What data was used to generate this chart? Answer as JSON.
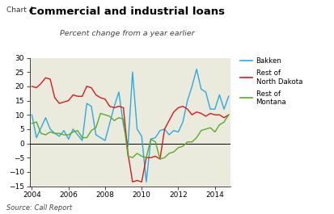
{
  "title": "Commercial and industrial loans",
  "chart_label": "Chart 4",
  "subtitle": "Percent change from a year earlier",
  "source": "Source: Call Report",
  "plot_bg_color": "#eaebdc",
  "ylim": [
    -15,
    30
  ],
  "yticks": [
    -15,
    -10,
    -5,
    0,
    5,
    10,
    15,
    20,
    25,
    30
  ],
  "xlim": [
    2003.9,
    2014.85
  ],
  "xticks": [
    2004,
    2006,
    2008,
    2010,
    2012,
    2014
  ],
  "colors": {
    "bakken": "#29abe2",
    "nd": "#d7191c",
    "mt": "#5aaa2a"
  },
  "bakken_x": [
    2004.0,
    2004.25,
    2004.5,
    2004.75,
    2005.0,
    2005.25,
    2005.5,
    2005.75,
    2006.0,
    2006.25,
    2006.5,
    2006.75,
    2007.0,
    2007.25,
    2007.5,
    2007.75,
    2008.0,
    2008.25,
    2008.5,
    2008.75,
    2009.0,
    2009.25,
    2009.5,
    2009.75,
    2010.0,
    2010.25,
    2010.5,
    2010.75,
    2011.0,
    2011.25,
    2011.5,
    2011.75,
    2012.0,
    2012.25,
    2012.5,
    2012.75,
    2013.0,
    2013.25,
    2013.5,
    2013.75,
    2014.0,
    2014.25,
    2014.5,
    2014.75
  ],
  "bakken_y": [
    10.0,
    2.0,
    5.5,
    9.0,
    5.0,
    3.5,
    2.5,
    4.5,
    1.5,
    5.0,
    3.0,
    1.0,
    14.0,
    13.0,
    3.0,
    2.0,
    1.0,
    7.0,
    13.0,
    18.0,
    6.5,
    -1.0,
    25.0,
    5.0,
    2.5,
    -13.5,
    1.5,
    2.0,
    4.5,
    5.0,
    3.0,
    4.5,
    4.0,
    7.5,
    15.0,
    20.0,
    26.0,
    19.0,
    18.0,
    12.0,
    12.0,
    17.0,
    12.0,
    16.5
  ],
  "nd_x": [
    2004.0,
    2004.25,
    2004.5,
    2004.75,
    2005.0,
    2005.25,
    2005.5,
    2005.75,
    2006.0,
    2006.25,
    2006.5,
    2006.75,
    2007.0,
    2007.25,
    2007.5,
    2007.75,
    2008.0,
    2008.25,
    2008.5,
    2008.75,
    2009.0,
    2009.25,
    2009.5,
    2009.75,
    2010.0,
    2010.25,
    2010.5,
    2010.75,
    2011.0,
    2011.25,
    2011.5,
    2011.75,
    2012.0,
    2012.25,
    2012.5,
    2012.75,
    2013.0,
    2013.25,
    2013.5,
    2013.75,
    2014.0,
    2014.25,
    2014.5,
    2014.75
  ],
  "nd_y": [
    20.0,
    19.5,
    21.0,
    23.0,
    22.5,
    16.0,
    14.0,
    14.5,
    15.0,
    17.0,
    16.5,
    16.5,
    20.0,
    19.5,
    17.0,
    16.0,
    15.5,
    13.0,
    12.5,
    13.0,
    12.5,
    -3.5,
    -13.5,
    -13.0,
    -13.5,
    -5.0,
    -5.0,
    -4.5,
    -5.5,
    5.0,
    8.0,
    11.0,
    12.5,
    13.0,
    12.0,
    10.0,
    11.0,
    10.5,
    9.5,
    10.5,
    10.0,
    10.0,
    9.0,
    10.0
  ],
  "mt_x": [
    2004.0,
    2004.25,
    2004.5,
    2004.75,
    2005.0,
    2005.25,
    2005.5,
    2005.75,
    2006.0,
    2006.25,
    2006.5,
    2006.75,
    2007.0,
    2007.25,
    2007.5,
    2007.75,
    2008.0,
    2008.25,
    2008.5,
    2008.75,
    2009.0,
    2009.25,
    2009.5,
    2009.75,
    2010.0,
    2010.25,
    2010.5,
    2010.75,
    2011.0,
    2011.25,
    2011.5,
    2011.75,
    2012.0,
    2012.25,
    2012.5,
    2012.75,
    2013.0,
    2013.25,
    2013.5,
    2013.75,
    2014.0,
    2014.25,
    2014.5,
    2014.75
  ],
  "mt_y": [
    7.0,
    7.5,
    3.5,
    3.0,
    4.0,
    3.5,
    3.5,
    3.0,
    3.0,
    4.0,
    4.5,
    2.0,
    2.0,
    4.5,
    5.5,
    10.5,
    10.0,
    9.5,
    8.0,
    9.0,
    8.5,
    -4.5,
    -5.0,
    -3.5,
    -4.5,
    -5.0,
    1.5,
    0.5,
    -5.5,
    -5.0,
    -3.5,
    -3.0,
    -1.5,
    -1.0,
    0.5,
    0.5,
    2.0,
    4.5,
    5.0,
    5.5,
    4.0,
    6.5,
    7.5,
    10.0
  ]
}
